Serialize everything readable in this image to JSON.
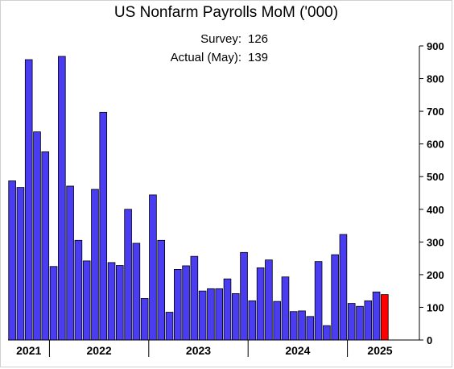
{
  "chart_data": {
    "type": "bar",
    "title": "US Nonfarm Payrolls MoM ('000)",
    "annotations": [
      {
        "label": "Survey:",
        "value": "126"
      },
      {
        "label": "Actual (May):",
        "value": "139"
      }
    ],
    "ylim": [
      0,
      900
    ],
    "yticks": [
      "0",
      "100",
      "200",
      "300",
      "400",
      "500",
      "600",
      "700",
      "800",
      "900"
    ],
    "year_labels": [
      "2021",
      "2022",
      "2023",
      "2024",
      "2025"
    ],
    "grid": false,
    "values": [
      487,
      467,
      858,
      637,
      576,
      225,
      868,
      471,
      305,
      242,
      461,
      697,
      237,
      228,
      400,
      296,
      127,
      444,
      305,
      85,
      216,
      227,
      256,
      150,
      157,
      157,
      187,
      142,
      268,
      120,
      221,
      245,
      118,
      193,
      87,
      89,
      72,
      240,
      44,
      261,
      323,
      112,
      103,
      120,
      147,
      139
    ],
    "colors": {
      "bar": "#4a3cf0",
      "latest": "#ff0000",
      "outline": "#000000"
    }
  }
}
